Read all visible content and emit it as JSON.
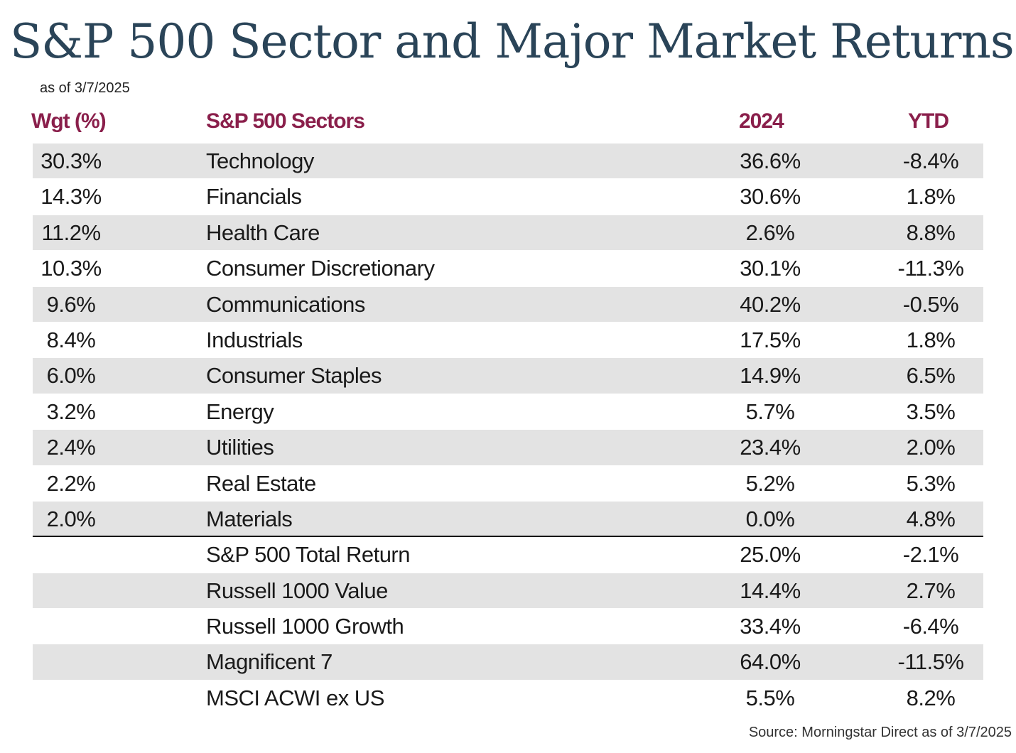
{
  "title": "S&P 500 Sector and Major Market Returns",
  "as_of": "as of 3/7/2025",
  "source": "Source: Morningstar Direct as of 3/7/2025",
  "colors": {
    "title": "#2a4458",
    "header": "#8a1f4b",
    "row_shade": "#e3e3e3"
  },
  "chart_data": {
    "type": "table",
    "columns": [
      "Wgt (%)",
      "S&P 500 Sectors",
      "2024",
      "YTD"
    ],
    "sector_rows": [
      {
        "wgt": "30.3%",
        "name": "Technology",
        "y2024": "36.6%",
        "ytd": "-8.4%"
      },
      {
        "wgt": "14.3%",
        "name": "Financials",
        "y2024": "30.6%",
        "ytd": "1.8%"
      },
      {
        "wgt": "11.2%",
        "name": "Health Care",
        "y2024": "2.6%",
        "ytd": "8.8%"
      },
      {
        "wgt": "10.3%",
        "name": "Consumer Discretionary",
        "y2024": "30.1%",
        "ytd": "-11.3%"
      },
      {
        "wgt": "9.6%",
        "name": "Communications",
        "y2024": "40.2%",
        "ytd": "-0.5%"
      },
      {
        "wgt": "8.4%",
        "name": "Industrials",
        "y2024": "17.5%",
        "ytd": "1.8%"
      },
      {
        "wgt": "6.0%",
        "name": "Consumer Staples",
        "y2024": "14.9%",
        "ytd": "6.5%"
      },
      {
        "wgt": "3.2%",
        "name": "Energy",
        "y2024": "5.7%",
        "ytd": "3.5%"
      },
      {
        "wgt": "2.4%",
        "name": "Utilities",
        "y2024": "23.4%",
        "ytd": "2.0%"
      },
      {
        "wgt": "2.2%",
        "name": "Real Estate",
        "y2024": "5.2%",
        "ytd": "5.3%"
      },
      {
        "wgt": "2.0%",
        "name": "Materials",
        "y2024": "0.0%",
        "ytd": "4.8%"
      }
    ],
    "market_rows": [
      {
        "name": "S&P 500 Total Return",
        "y2024": "25.0%",
        "ytd": "-2.1%"
      },
      {
        "name": "Russell 1000 Value",
        "y2024": "14.4%",
        "ytd": "2.7%"
      },
      {
        "name": "Russell 1000 Growth",
        "y2024": "33.4%",
        "ytd": "-6.4%"
      },
      {
        "name": "Magnificent 7",
        "y2024": "64.0%",
        "ytd": "-11.5%"
      },
      {
        "name": "MSCI ACWI ex US",
        "y2024": "5.5%",
        "ytd": "8.2%"
      }
    ]
  }
}
